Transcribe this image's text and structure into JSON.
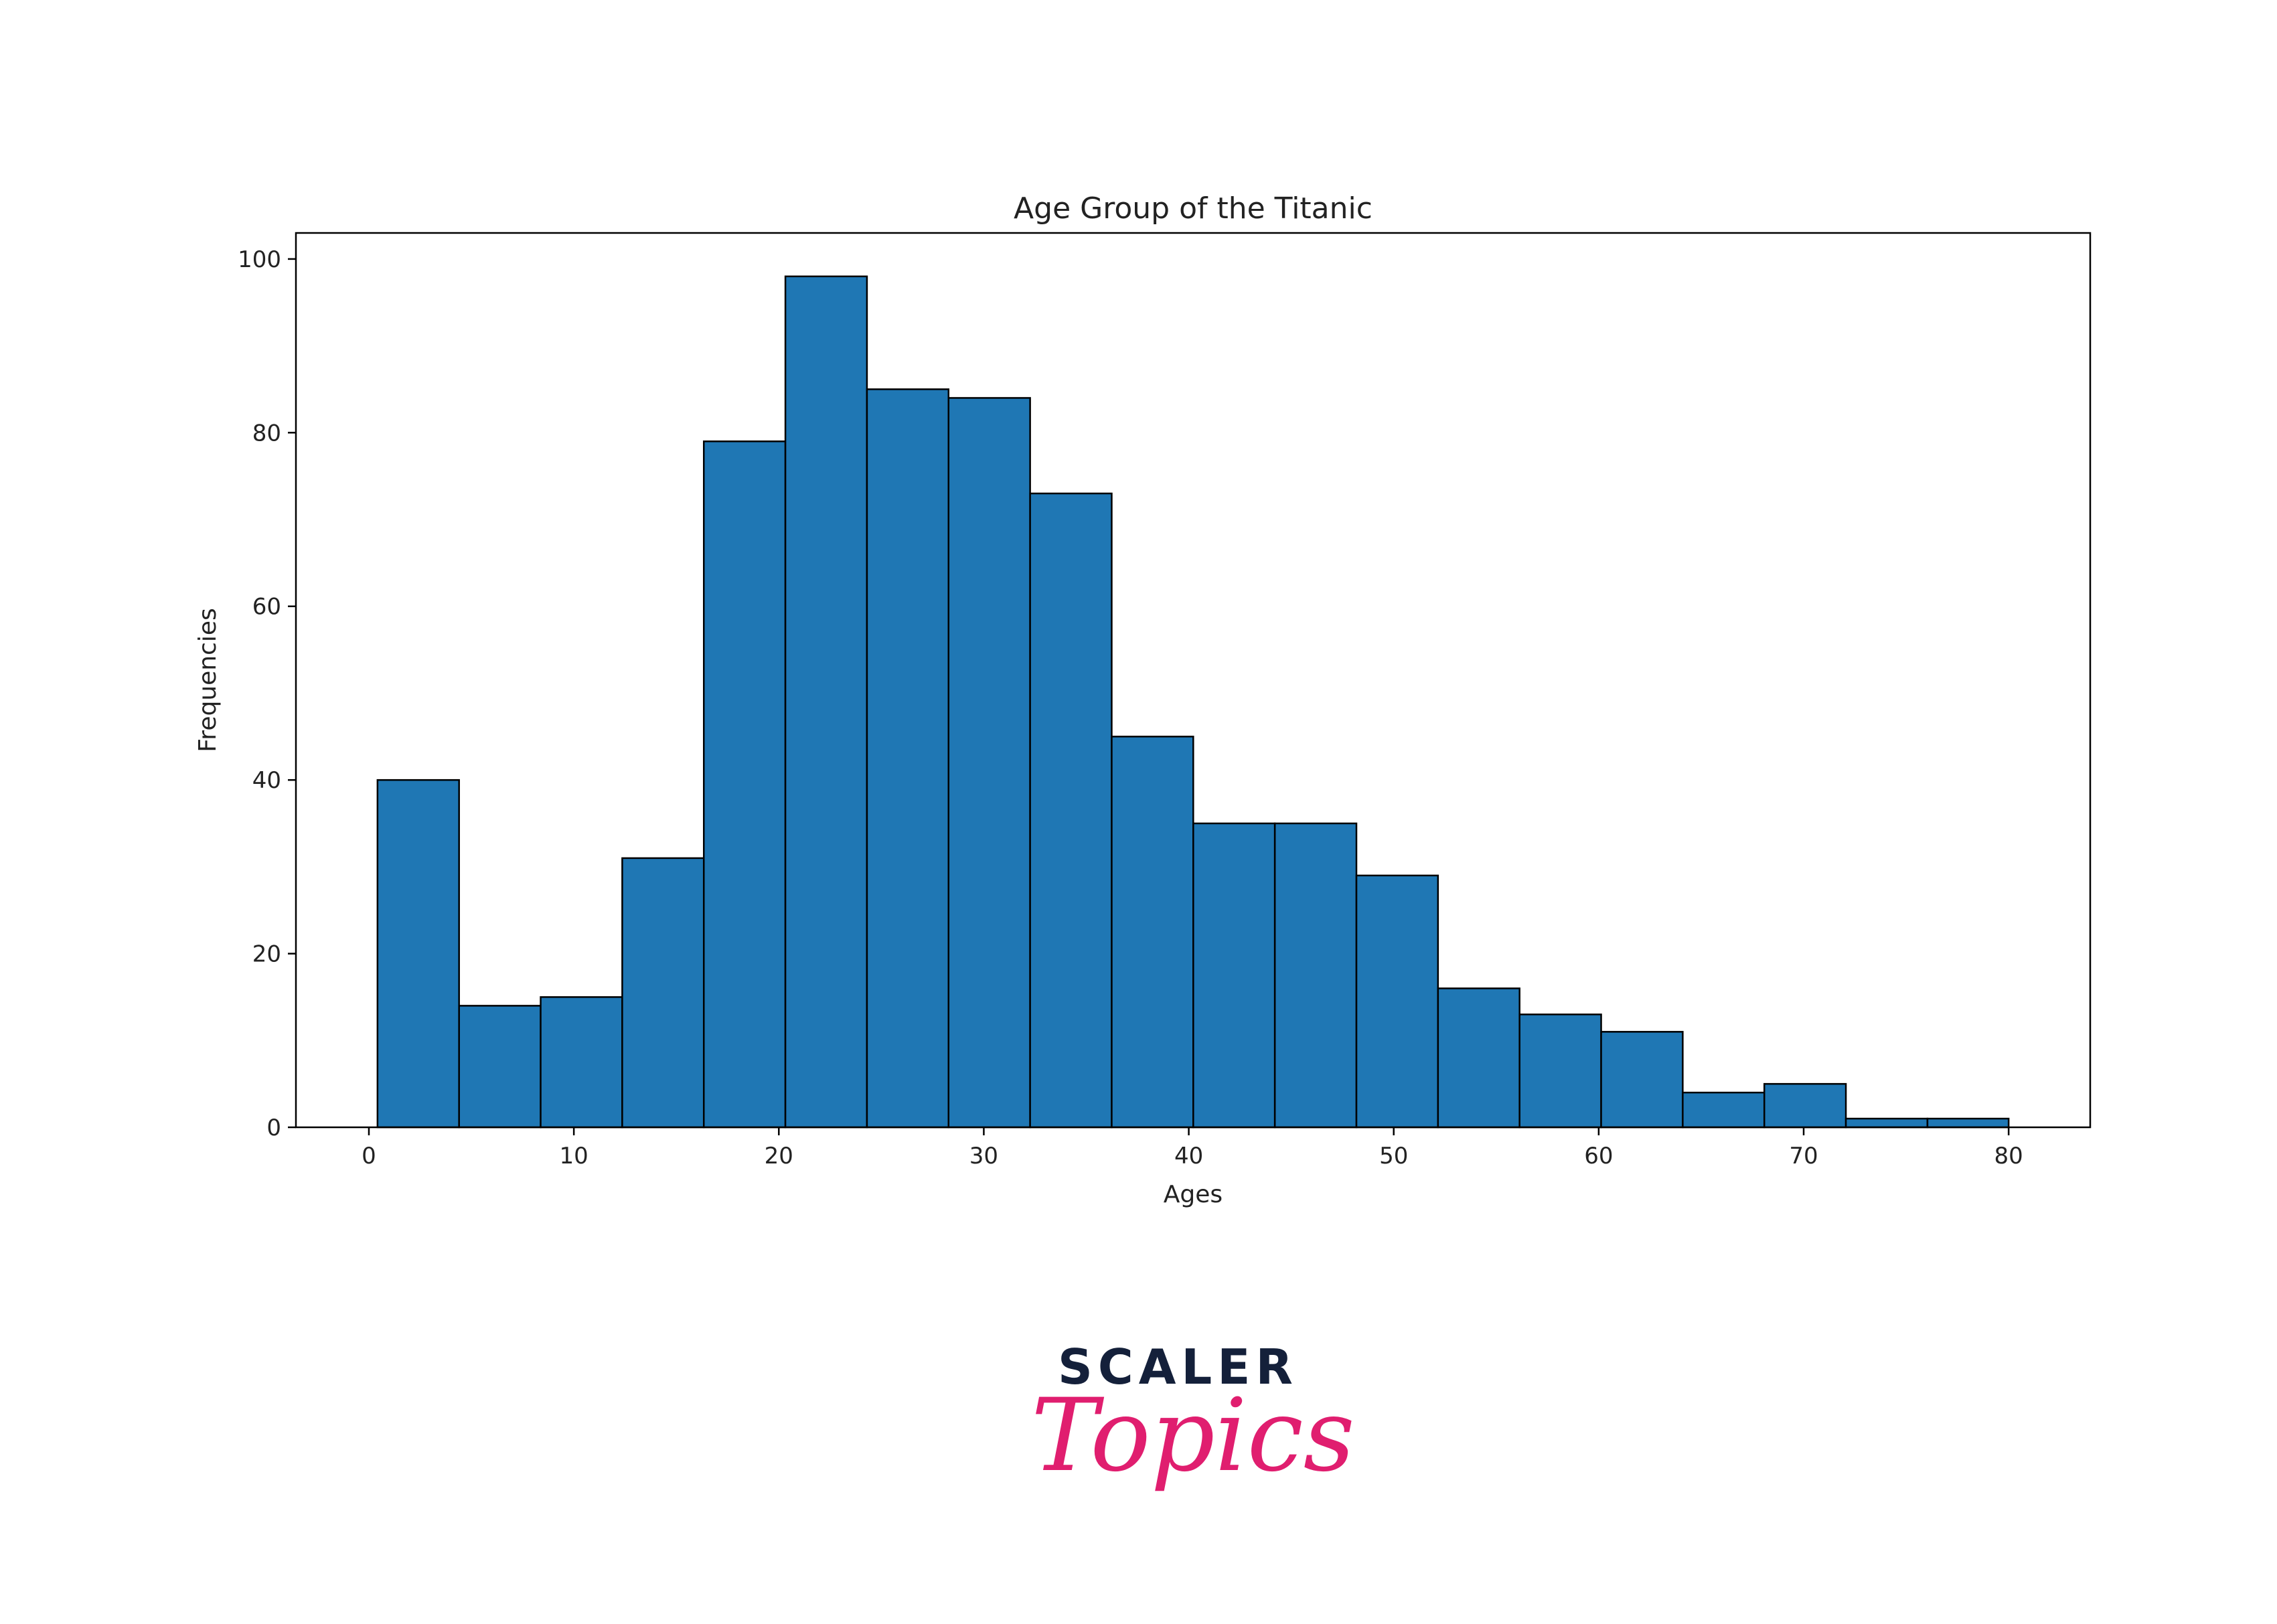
{
  "chart_data": {
    "type": "bar",
    "title": "Age Group of the Titanic",
    "xlabel": "Ages",
    "ylabel": "Frequencies",
    "bin_edges": [
      0.42,
      4.4,
      8.38,
      12.36,
      16.34,
      20.32,
      24.3,
      28.28,
      32.26,
      36.24,
      40.22,
      44.2,
      48.18,
      52.16,
      56.14,
      60.12,
      64.1,
      68.08,
      72.06,
      76.04,
      80.0
    ],
    "values": [
      40,
      14,
      15,
      31,
      79,
      98,
      85,
      84,
      73,
      45,
      35,
      35,
      29,
      16,
      13,
      11,
      4,
      5,
      1,
      1
    ],
    "xlim": [
      -3.56,
      83.98
    ],
    "ylim": [
      0,
      103
    ],
    "xticks": [
      0,
      10,
      20,
      30,
      40,
      50,
      60,
      70,
      80
    ],
    "yticks": [
      0,
      20,
      40,
      60,
      80,
      100
    ],
    "bar_color": "#1f77b4",
    "edge_color": "#000000",
    "grid": false,
    "legend": "none"
  },
  "logo": {
    "word": "SCALER",
    "script": "Topics",
    "word_color": "#14203a",
    "script_color": "#e01e6f"
  }
}
